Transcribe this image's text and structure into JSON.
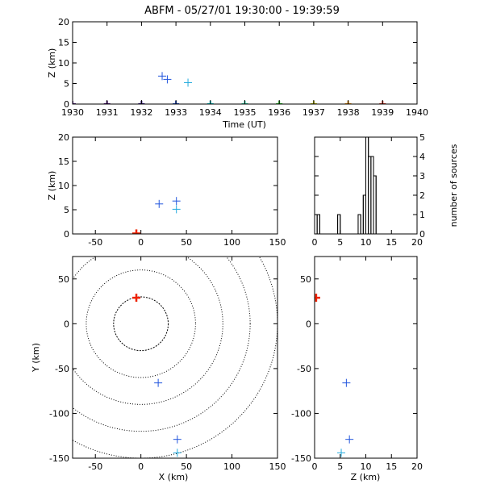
{
  "title": "ABFM - 05/27/01 19:30:00 - 19:39:59",
  "colors": {
    "axis": "#000000",
    "source": "#2255dd",
    "source_alt": "#22aadd",
    "highlight": "#ee2200"
  },
  "chart_data": [
    {
      "id": "time-height",
      "type": "scatter",
      "xlabel": "Time (UT)",
      "ylabel": "Z (km)",
      "xlim": [
        1930,
        1940
      ],
      "ylim": [
        0,
        20
      ],
      "xticks": [
        "1930",
        "1931",
        "1932",
        "1933",
        "1934",
        "1935",
        "1936",
        "1937",
        "1938",
        "1939",
        "1940"
      ],
      "yticks": [
        "0",
        "5",
        "10",
        "15",
        "20"
      ],
      "sources": [
        {
          "x": 1932.6,
          "y": 6.8,
          "color": "#2255dd"
        },
        {
          "x": 1932.75,
          "y": 6.0,
          "color": "#2255dd"
        },
        {
          "x": 1933.35,
          "y": 5.2,
          "color": "#22aadd"
        }
      ],
      "markers": [
        {
          "x": 1930.0,
          "y": 0,
          "color": "#552288"
        },
        {
          "x": 1931.0,
          "y": 0,
          "color": "#551188"
        },
        {
          "x": 1932.0,
          "y": 0,
          "color": "#331188"
        },
        {
          "x": 1933.0,
          "y": 0,
          "color": "#2255dd"
        },
        {
          "x": 1934.0,
          "y": 0,
          "color": "#00dddd"
        },
        {
          "x": 1935.0,
          "y": 0,
          "color": "#22ddaa"
        },
        {
          "x": 1936.0,
          "y": 0,
          "color": "#22cc22"
        },
        {
          "x": 1937.0,
          "y": 0,
          "color": "#cccc00"
        },
        {
          "x": 1938.0,
          "y": 0,
          "color": "#ff9900"
        },
        {
          "x": 1939.0,
          "y": 0,
          "color": "#dd3322"
        }
      ]
    },
    {
      "id": "x-height",
      "type": "scatter",
      "xlabel": "",
      "ylabel": "Z (km)",
      "xlim": [
        -75,
        150
      ],
      "ylim": [
        0,
        20
      ],
      "xticks": [
        "-50",
        "0",
        "50",
        "100",
        "150"
      ],
      "yticks": [
        "0",
        "5",
        "10",
        "15",
        "20"
      ],
      "sources": [
        {
          "x": 20,
          "y": 6.2,
          "color": "#2255dd"
        },
        {
          "x": 39,
          "y": 6.8,
          "color": "#2255dd"
        },
        {
          "x": 39,
          "y": 5.1,
          "color": "#22aadd"
        }
      ],
      "highlight": {
        "x": -5,
        "y": 0.1
      }
    },
    {
      "id": "height-histogram",
      "type": "bar",
      "xlabel": "",
      "ylabel": "number of sources",
      "xlim": [
        0,
        20
      ],
      "ylim": [
        0,
        5
      ],
      "xticks": [
        "0",
        "5",
        "10",
        "15",
        "20"
      ],
      "yticks": [
        "0",
        "1",
        "2",
        "3",
        "4",
        "5"
      ],
      "bin_width": 0.5,
      "bins_start": 0,
      "counts": [
        0,
        1,
        0,
        0,
        0,
        0,
        0,
        0,
        0,
        1,
        0,
        0,
        0,
        0,
        0,
        0,
        0,
        1,
        0,
        2,
        5,
        4,
        4,
        3,
        0,
        0,
        0,
        0,
        0,
        0,
        0,
        0,
        0,
        0,
        0,
        0,
        0,
        0,
        0,
        0
      ]
    },
    {
      "id": "plan-view",
      "type": "scatter",
      "xlabel": "X (km)",
      "ylabel": "Y (km)",
      "xlim": [
        -75,
        150
      ],
      "ylim": [
        -150,
        75
      ],
      "xticks": [
        "-50",
        "0",
        "50",
        "100",
        "150"
      ],
      "yticks": [
        "-150",
        "-100",
        "-50",
        "0",
        "50"
      ],
      "range_rings_km": [
        30,
        60,
        90,
        120,
        150
      ],
      "sources": [
        {
          "x": 19,
          "y": -66,
          "color": "#2255dd"
        },
        {
          "x": 40,
          "y": -129,
          "color": "#2255dd"
        },
        {
          "x": 40,
          "y": -144,
          "color": "#22aadd"
        }
      ],
      "highlight": {
        "x": -5,
        "y": 29
      }
    },
    {
      "id": "height-y",
      "type": "scatter",
      "xlabel": "Z (km)",
      "ylabel": "",
      "xlim": [
        0,
        20
      ],
      "ylim": [
        -150,
        75
      ],
      "xticks": [
        "0",
        "5",
        "10",
        "15",
        "20"
      ],
      "yticks": [
        "-150",
        "-100",
        "-50",
        "0",
        "50"
      ],
      "sources": [
        {
          "x": 6.2,
          "y": -66,
          "color": "#2255dd"
        },
        {
          "x": 6.8,
          "y": -129,
          "color": "#2255dd"
        },
        {
          "x": 5.2,
          "y": -144,
          "color": "#22aadd"
        }
      ],
      "highlight": {
        "x": 0.3,
        "y": 29
      }
    }
  ]
}
